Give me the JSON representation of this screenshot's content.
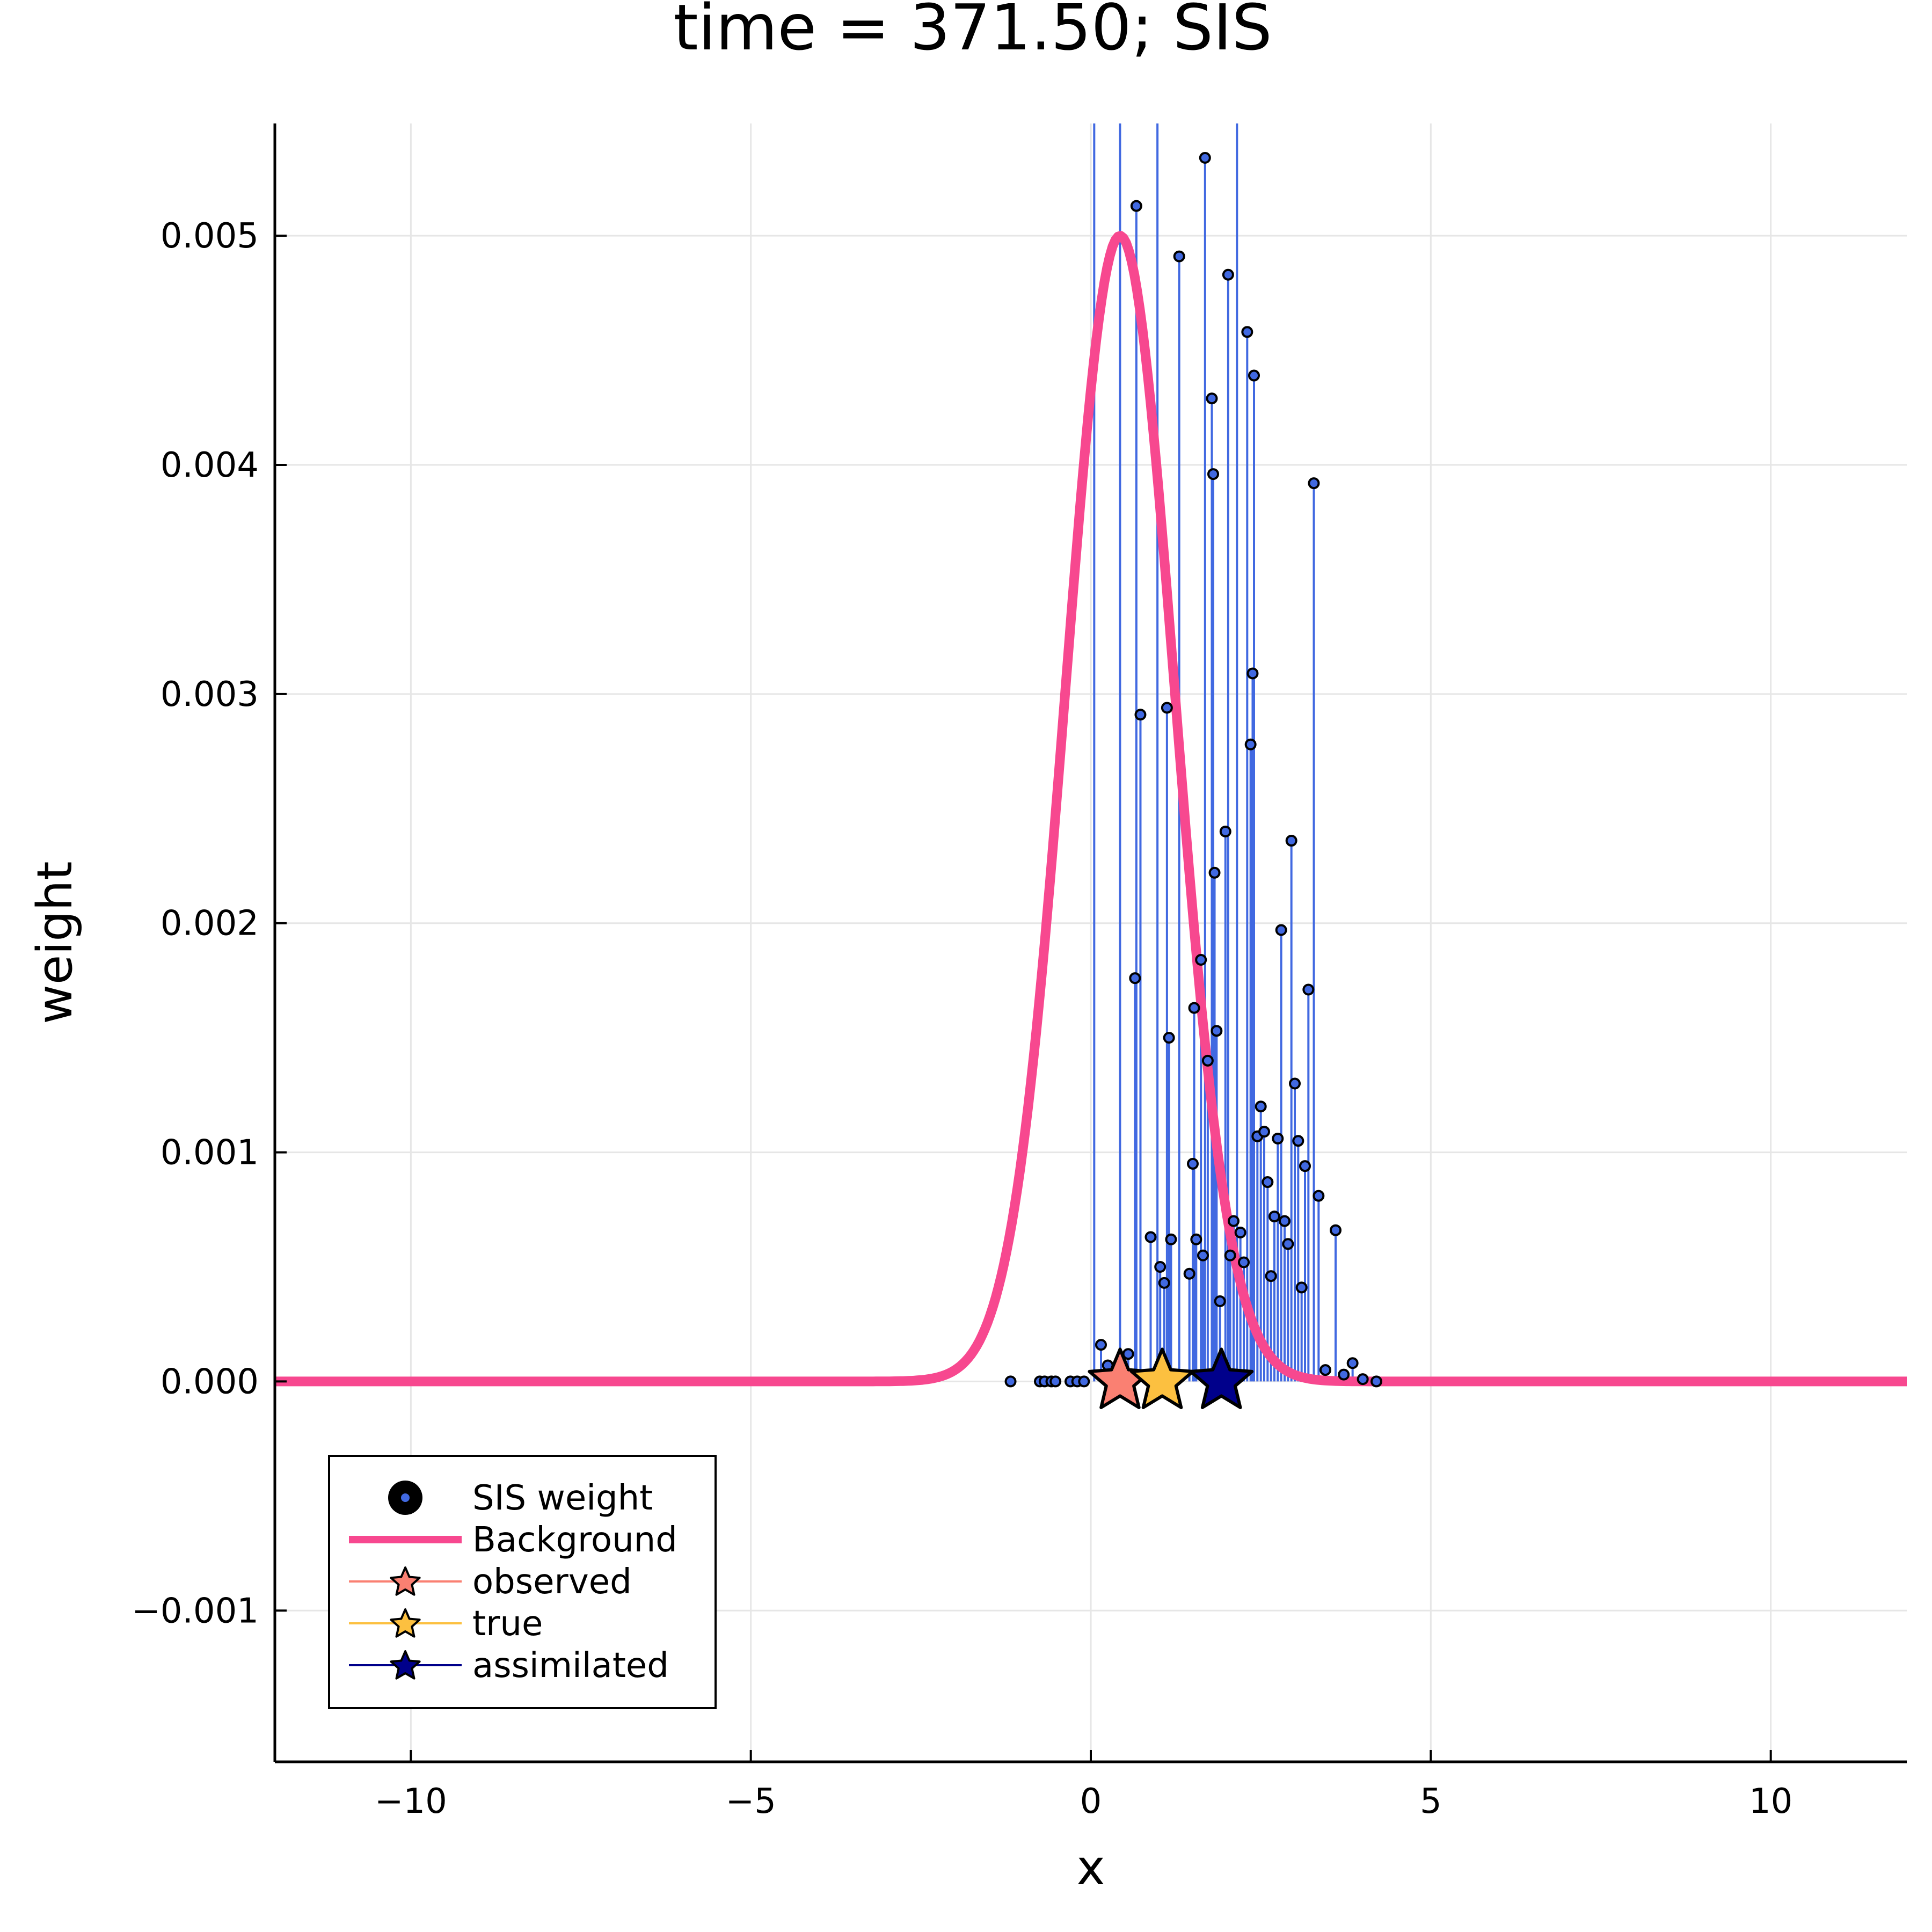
{
  "chart_data": {
    "type": "scatter",
    "title": "time = 371.50; SIS",
    "xlabel": "x",
    "ylabel": "weight",
    "xlim": [
      -12,
      12
    ],
    "ylim": [
      -0.00166,
      0.00549
    ],
    "grid": true,
    "legend_position": "bottom-left",
    "x_ticks": [
      -10,
      -5,
      0,
      5,
      10
    ],
    "x_tick_labels": [
      "−10",
      "−5",
      "0",
      "5",
      "10"
    ],
    "y_ticks": [
      -0.001,
      0.0,
      0.001,
      0.002,
      0.003,
      0.004,
      0.005
    ],
    "y_tick_labels": [
      "−0.001",
      "0.000",
      "0.001",
      "0.002",
      "0.003",
      "0.004",
      "0.005"
    ],
    "legend": [
      {
        "label": "SIS weight",
        "marker": "circle",
        "color": "#4169e1"
      },
      {
        "label": "Background",
        "marker": "line",
        "color": "#f7488f"
      },
      {
        "label": "observed",
        "marker": "star",
        "color": "#fa8072"
      },
      {
        "label": "true",
        "marker": "star",
        "color": "#fcc040"
      },
      {
        "label": "assimilated",
        "marker": "star",
        "color": "#00008b"
      }
    ],
    "sis_weights": {
      "name": "SIS weight",
      "color": "#4169e1",
      "points": [
        [
          -1.18,
          0.0
        ],
        [
          -0.75,
          0.0
        ],
        [
          -0.68,
          0.0
        ],
        [
          -0.58,
          0.0
        ],
        [
          -0.52,
          0.0
        ],
        [
          -0.3,
          0.0
        ],
        [
          -0.2,
          0.0
        ],
        [
          -0.1,
          0.0
        ],
        [
          0.05,
          0.0058
        ],
        [
          0.15,
          0.00016
        ],
        [
          0.25,
          7e-05
        ],
        [
          0.43,
          0.006
        ],
        [
          0.55,
          0.00012
        ],
        [
          0.65,
          0.00176
        ],
        [
          0.67,
          0.00513
        ],
        [
          0.73,
          0.00291
        ],
        [
          0.88,
          0.00063
        ],
        [
          0.98,
          0.0059
        ],
        [
          1.02,
          0.0005
        ],
        [
          1.08,
          0.00043
        ],
        [
          1.12,
          0.00294
        ],
        [
          1.15,
          0.0015
        ],
        [
          1.18,
          0.00062
        ],
        [
          1.3,
          0.00491
        ],
        [
          1.45,
          0.00047
        ],
        [
          1.5,
          0.00095
        ],
        [
          1.52,
          0.00163
        ],
        [
          1.55,
          0.00062
        ],
        [
          1.62,
          0.00184
        ],
        [
          1.65,
          0.00055
        ],
        [
          1.68,
          0.00534
        ],
        [
          1.72,
          0.0014
        ],
        [
          1.78,
          0.00429
        ],
        [
          1.8,
          0.00396
        ],
        [
          1.82,
          0.00222
        ],
        [
          1.85,
          0.00153
        ],
        [
          1.9,
          0.00035
        ],
        [
          1.98,
          0.0024
        ],
        [
          2.02,
          0.00483
        ],
        [
          2.05,
          0.00055
        ],
        [
          2.1,
          0.0007
        ],
        [
          2.15,
          0.006
        ],
        [
          2.2,
          0.00065
        ],
        [
          2.25,
          0.00052
        ],
        [
          2.3,
          0.00458
        ],
        [
          2.35,
          0.00278
        ],
        [
          2.38,
          0.00309
        ],
        [
          2.4,
          0.00439
        ],
        [
          2.45,
          0.00107
        ],
        [
          2.5,
          0.0012
        ],
        [
          2.55,
          0.00109
        ],
        [
          2.6,
          0.00087
        ],
        [
          2.65,
          0.00046
        ],
        [
          2.7,
          0.00072
        ],
        [
          2.75,
          0.00106
        ],
        [
          2.8,
          0.00197
        ],
        [
          2.85,
          0.0007
        ],
        [
          2.9,
          0.0006
        ],
        [
          2.95,
          0.00236
        ],
        [
          3.0,
          0.0013
        ],
        [
          3.05,
          0.00105
        ],
        [
          3.1,
          0.00041
        ],
        [
          3.15,
          0.00094
        ],
        [
          3.2,
          0.00171
        ],
        [
          3.28,
          0.00392
        ],
        [
          3.35,
          0.00081
        ],
        [
          3.45,
          5e-05
        ],
        [
          3.6,
          0.00066
        ],
        [
          3.72,
          3e-05
        ],
        [
          3.85,
          8e-05
        ],
        [
          4.0,
          1e-05
        ],
        [
          4.2,
          0.0
        ]
      ]
    },
    "background": {
      "name": "Background",
      "color": "#f7488f",
      "distribution": "normal",
      "mean": 0.43,
      "sd": 0.8,
      "peak": 0.005
    },
    "markers": [
      {
        "name": "observed",
        "x": 0.43,
        "y": 0.0,
        "color": "#fa8072"
      },
      {
        "name": "true",
        "x": 1.05,
        "y": 0.0,
        "color": "#fcc040"
      },
      {
        "name": "assimilated",
        "x": 1.92,
        "y": 0.0,
        "color": "#00008b"
      }
    ]
  }
}
